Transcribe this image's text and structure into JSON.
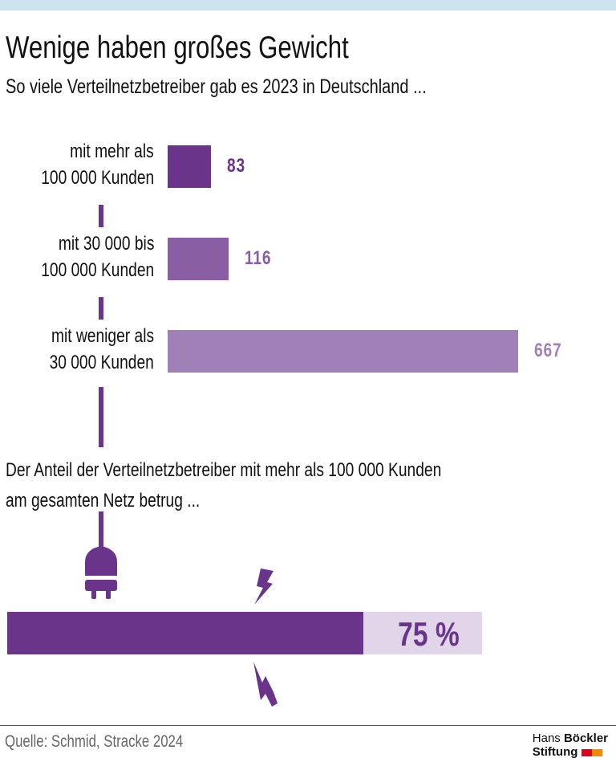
{
  "title": "Wenige haben großes Gewicht",
  "subtitle": "So viele Verteilnetzbetreiber gab es 2023 in Deutschland ...",
  "chart_data": {
    "type": "bar",
    "orientation": "horizontal",
    "categories": [
      "mit mehr als 100 000 Kunden",
      "mit 30 000 bis 100 000 Kunden",
      "mit weniger als 30 000 Kunden"
    ],
    "category_lines": [
      [
        "mit mehr als",
        "100 000 Kunden"
      ],
      [
        "mit 30 000 bis",
        "100 000 Kunden"
      ],
      [
        "mit weniger als",
        "30 000 Kunden"
      ]
    ],
    "values": [
      83,
      116,
      667
    ],
    "value_labels": [
      "83",
      "116",
      "667"
    ],
    "colors": [
      "#6b348b",
      "#8a5ea3",
      "#a080b6"
    ],
    "grid": false
  },
  "share": {
    "question_lines": [
      "Der Anteil der Verteilnetzbetreiber mit mehr als 100 000 Kunden",
      "am gesamten Netz betrug ..."
    ],
    "value": 75,
    "label": "75 %",
    "fill_color": "#6b348b",
    "track_color": "#e0d5e9",
    "icons": [
      "plug-icon",
      "lightning-icon",
      "lightning-icon"
    ]
  },
  "footer": {
    "source": "Quelle: Schmid, Stracke 2024",
    "logo_line1_light": "Hans",
    "logo_line1_bold": "Böckler",
    "logo_line2": "Stiftung",
    "logo_colors": [
      "#e3001b",
      "#f18a00"
    ]
  }
}
